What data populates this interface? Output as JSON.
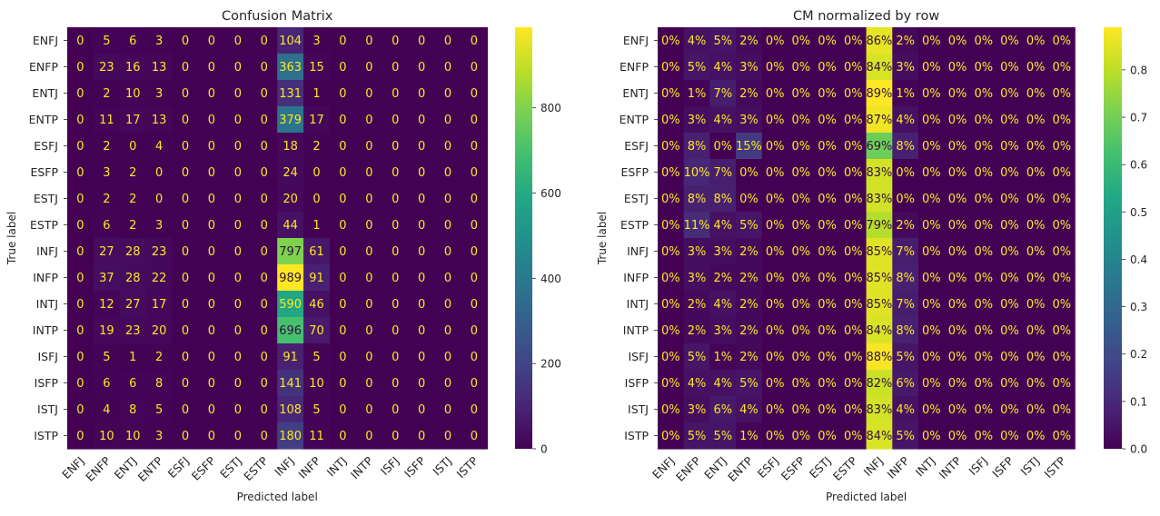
{
  "chart_data": [
    {
      "type": "heatmap",
      "title": "Confusion Matrix",
      "xlabel": "Predicted label",
      "ylabel": "True label",
      "x_categories": [
        "ENFJ",
        "ENFP",
        "ENTJ",
        "ENTP",
        "ESFJ",
        "ESFP",
        "ESTJ",
        "ESTP",
        "INFJ",
        "INFP",
        "INTJ",
        "INTP",
        "ISFJ",
        "ISFP",
        "ISTJ",
        "ISTP"
      ],
      "y_categories": [
        "ENFJ",
        "ENFP",
        "ENTJ",
        "ENTP",
        "ESFJ",
        "ESFP",
        "ESTJ",
        "ESTP",
        "INFJ",
        "INFP",
        "INTJ",
        "INTP",
        "ISFJ",
        "ISFP",
        "ISTJ",
        "ISTP"
      ],
      "colormap": "viridis",
      "color_range": [
        0,
        989
      ],
      "colorbar_ticks": [
        0,
        200,
        400,
        600,
        800
      ],
      "colorbar_tick_labels": [
        "0",
        "200",
        "400",
        "600",
        "800"
      ],
      "values": [
        [
          0,
          5,
          6,
          3,
          0,
          0,
          0,
          0,
          104,
          3,
          0,
          0,
          0,
          0,
          0,
          0
        ],
        [
          0,
          23,
          16,
          13,
          0,
          0,
          0,
          0,
          363,
          15,
          0,
          0,
          0,
          0,
          0,
          0
        ],
        [
          0,
          2,
          10,
          3,
          0,
          0,
          0,
          0,
          131,
          1,
          0,
          0,
          0,
          0,
          0,
          0
        ],
        [
          0,
          11,
          17,
          13,
          0,
          0,
          0,
          0,
          379,
          17,
          0,
          0,
          0,
          0,
          0,
          0
        ],
        [
          0,
          2,
          0,
          4,
          0,
          0,
          0,
          0,
          18,
          2,
          0,
          0,
          0,
          0,
          0,
          0
        ],
        [
          0,
          3,
          2,
          0,
          0,
          0,
          0,
          0,
          24,
          0,
          0,
          0,
          0,
          0,
          0,
          0
        ],
        [
          0,
          2,
          2,
          0,
          0,
          0,
          0,
          0,
          20,
          0,
          0,
          0,
          0,
          0,
          0,
          0
        ],
        [
          0,
          6,
          2,
          3,
          0,
          0,
          0,
          0,
          44,
          1,
          0,
          0,
          0,
          0,
          0,
          0
        ],
        [
          0,
          27,
          28,
          23,
          0,
          0,
          0,
          0,
          797,
          61,
          0,
          0,
          0,
          0,
          0,
          0
        ],
        [
          0,
          37,
          28,
          22,
          0,
          0,
          0,
          0,
          989,
          91,
          0,
          0,
          0,
          0,
          0,
          0
        ],
        [
          0,
          12,
          27,
          17,
          0,
          0,
          0,
          0,
          590,
          46,
          0,
          0,
          0,
          0,
          0,
          0
        ],
        [
          0,
          19,
          23,
          20,
          0,
          0,
          0,
          0,
          696,
          70,
          0,
          0,
          0,
          0,
          0,
          0
        ],
        [
          0,
          5,
          1,
          2,
          0,
          0,
          0,
          0,
          91,
          5,
          0,
          0,
          0,
          0,
          0,
          0
        ],
        [
          0,
          6,
          6,
          8,
          0,
          0,
          0,
          0,
          141,
          10,
          0,
          0,
          0,
          0,
          0,
          0
        ],
        [
          0,
          4,
          8,
          5,
          0,
          0,
          0,
          0,
          108,
          5,
          0,
          0,
          0,
          0,
          0,
          0
        ],
        [
          0,
          10,
          10,
          3,
          0,
          0,
          0,
          0,
          180,
          11,
          0,
          0,
          0,
          0,
          0,
          0
        ]
      ],
      "value_format": "count"
    },
    {
      "type": "heatmap",
      "title": "CM normalized by row",
      "xlabel": "Predicted label",
      "ylabel": "True label",
      "x_categories": [
        "ENFJ",
        "ENFP",
        "ENTJ",
        "ENTP",
        "ESFJ",
        "ESFP",
        "ESTJ",
        "ESTP",
        "INFJ",
        "INFP",
        "INTJ",
        "INTP",
        "ISFJ",
        "ISFP",
        "ISTJ",
        "ISTP"
      ],
      "y_categories": [
        "ENFJ",
        "ENFP",
        "ENTJ",
        "ENTP",
        "ESFJ",
        "ESFP",
        "ESTJ",
        "ESTP",
        "INFJ",
        "INFP",
        "INTJ",
        "INTP",
        "ISFJ",
        "ISFP",
        "ISTJ",
        "ISTP"
      ],
      "colormap": "viridis",
      "color_range": [
        0,
        0.89
      ],
      "colorbar_ticks": [
        0.0,
        0.1,
        0.2,
        0.3,
        0.4,
        0.5,
        0.6,
        0.7,
        0.8
      ],
      "colorbar_tick_labels": [
        "0.0",
        "0.1",
        "0.2",
        "0.3",
        "0.4",
        "0.5",
        "0.6",
        "0.7",
        "0.8"
      ],
      "values": [
        [
          0,
          4,
          5,
          2,
          0,
          0,
          0,
          0,
          86,
          2,
          0,
          0,
          0,
          0,
          0,
          0
        ],
        [
          0,
          5,
          4,
          3,
          0,
          0,
          0,
          0,
          84,
          3,
          0,
          0,
          0,
          0,
          0,
          0
        ],
        [
          0,
          1,
          7,
          2,
          0,
          0,
          0,
          0,
          89,
          1,
          0,
          0,
          0,
          0,
          0,
          0
        ],
        [
          0,
          3,
          4,
          3,
          0,
          0,
          0,
          0,
          87,
          4,
          0,
          0,
          0,
          0,
          0,
          0
        ],
        [
          0,
          8,
          0,
          15,
          0,
          0,
          0,
          0,
          69,
          8,
          0,
          0,
          0,
          0,
          0,
          0
        ],
        [
          0,
          10,
          7,
          0,
          0,
          0,
          0,
          0,
          83,
          0,
          0,
          0,
          0,
          0,
          0,
          0
        ],
        [
          0,
          8,
          8,
          0,
          0,
          0,
          0,
          0,
          83,
          0,
          0,
          0,
          0,
          0,
          0,
          0
        ],
        [
          0,
          11,
          4,
          5,
          0,
          0,
          0,
          0,
          79,
          2,
          0,
          0,
          0,
          0,
          0,
          0
        ],
        [
          0,
          3,
          3,
          2,
          0,
          0,
          0,
          0,
          85,
          7,
          0,
          0,
          0,
          0,
          0,
          0
        ],
        [
          0,
          3,
          2,
          2,
          0,
          0,
          0,
          0,
          85,
          8,
          0,
          0,
          0,
          0,
          0,
          0
        ],
        [
          0,
          2,
          4,
          2,
          0,
          0,
          0,
          0,
          85,
          7,
          0,
          0,
          0,
          0,
          0,
          0
        ],
        [
          0,
          2,
          3,
          2,
          0,
          0,
          0,
          0,
          84,
          8,
          0,
          0,
          0,
          0,
          0,
          0
        ],
        [
          0,
          5,
          1,
          2,
          0,
          0,
          0,
          0,
          88,
          5,
          0,
          0,
          0,
          0,
          0,
          0
        ],
        [
          0,
          4,
          4,
          5,
          0,
          0,
          0,
          0,
          82,
          6,
          0,
          0,
          0,
          0,
          0,
          0
        ],
        [
          0,
          3,
          6,
          4,
          0,
          0,
          0,
          0,
          83,
          4,
          0,
          0,
          0,
          0,
          0,
          0
        ],
        [
          0,
          5,
          5,
          1,
          0,
          0,
          0,
          0,
          84,
          5,
          0,
          0,
          0,
          0,
          0,
          0
        ]
      ],
      "value_format": "percent"
    }
  ]
}
